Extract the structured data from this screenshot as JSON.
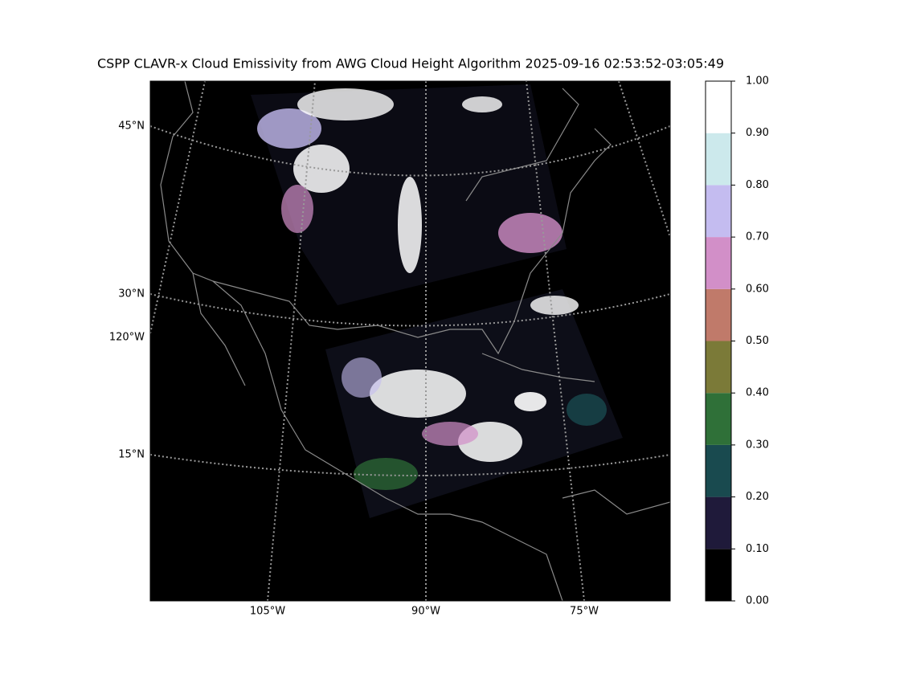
{
  "title": "CSPP CLAVR-x Cloud Emissivity from AWG Cloud Height Algorithm 2025-09-16 02:53:52-03:05:49",
  "map": {
    "lat_labels": [
      "45°N",
      "30°N",
      "15°N"
    ],
    "lon_labels": [
      "105°W",
      "90°W",
      "75°W"
    ],
    "edge_lon_label": "120°W"
  },
  "colorbar": {
    "lim": [
      0,
      1
    ],
    "ticks": [
      {
        "value": 0,
        "label": "0.00"
      },
      {
        "value": 0.1,
        "label": "0.10"
      },
      {
        "value": 0.2,
        "label": "0.20"
      },
      {
        "value": 0.3,
        "label": "0.30"
      },
      {
        "value": 0.4,
        "label": "0.40"
      },
      {
        "value": 0.5,
        "label": "0.50"
      },
      {
        "value": 0.6,
        "label": "0.60"
      },
      {
        "value": 0.7,
        "label": "0.70"
      },
      {
        "value": 0.8,
        "label": "0.80"
      },
      {
        "value": 0.9,
        "label": "0.90"
      },
      {
        "value": 1,
        "label": "1.00"
      }
    ],
    "colors": [
      "#000000",
      "#1f1a3a",
      "#194a4f",
      "#2f7038",
      "#7b7a38",
      "#c07a6a",
      "#d28fc8",
      "#c4bcf0",
      "#cce9ec",
      "#ffffff"
    ]
  }
}
